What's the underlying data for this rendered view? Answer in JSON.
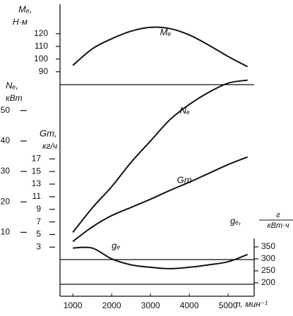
{
  "chart_data": {
    "type": "line",
    "x": [
      1000,
      1500,
      2000,
      2500,
      3000,
      3500,
      4000,
      4500,
      5000,
      5500
    ],
    "xlim": [
      670,
      5670
    ],
    "xticks": [
      1000,
      2000,
      3000,
      4000,
      5000
    ],
    "x_label": "n, мин⁻¹",
    "axes": [
      {
        "name": "Mₑ,",
        "unit": "Н·м",
        "lim": [
          -87,
          141
        ],
        "ticks": [
          90,
          100,
          110,
          120
        ]
      },
      {
        "name": "Nₑ,",
        "unit": "кВт",
        "lim": [
          -11,
          84
        ],
        "ticks": [
          10,
          20,
          30,
          40,
          50
        ]
      },
      {
        "name": "Gт,",
        "unit": "кг/ч",
        "lim": [
          -4.8,
          41.1
        ],
        "ticks": [
          3,
          5,
          7,
          9,
          11,
          13,
          15,
          17
        ]
      },
      {
        "name": "gₑ,",
        "unit_numerator": "г",
        "unit_denominator": "кВт·ч",
        "lim": [
          144,
          1350
        ],
        "ticks": [
          200,
          250,
          300,
          350
        ]
      }
    ],
    "series": [
      {
        "name": "Mₑ",
        "axis": 0,
        "color": "#111111",
        "values": [
          95,
          108,
          116,
          122,
          125,
          124,
          119,
          111,
          102,
          94
        ]
      },
      {
        "name": "Nₑ",
        "axis": 1,
        "color": "#111111",
        "values": [
          10,
          18,
          25,
          33,
          40,
          47,
          52,
          56,
          59,
          60
        ]
      },
      {
        "name": "Gт",
        "axis": 2,
        "color": "#111111",
        "values": [
          3.9,
          6.2,
          8,
          9.3,
          10.6,
          12,
          13.3,
          14.7,
          16.1,
          17.3
        ]
      },
      {
        "name": "gₑ",
        "axis": 3,
        "color": "#111111",
        "values": [
          345,
          345,
          300,
          275,
          265,
          259,
          265,
          275,
          288,
          318
        ]
      }
    ]
  }
}
